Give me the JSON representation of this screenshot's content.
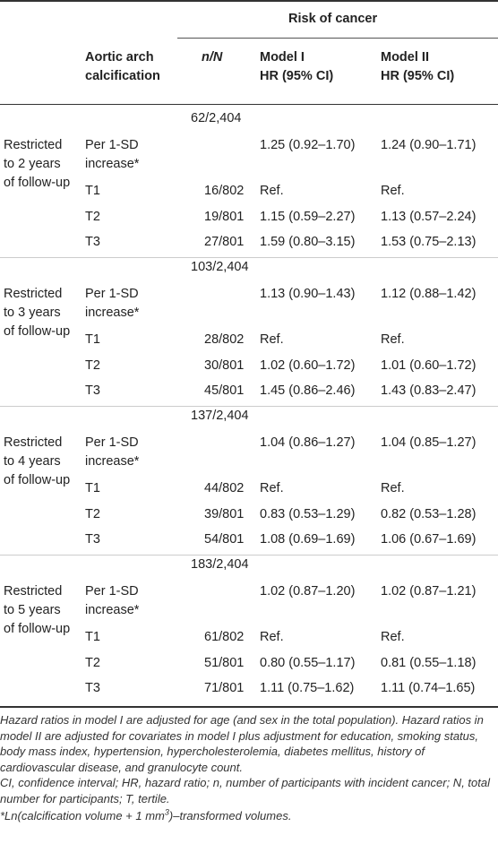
{
  "header": {
    "group_title": "Risk of cancer",
    "col_exposure": [
      "Aortic arch",
      "calcification"
    ],
    "col_n": "n/N",
    "col_model1": [
      "Model I",
      "HR (95% CI)"
    ],
    "col_model2": [
      "Model II",
      "HR (95% CI)"
    ]
  },
  "blocks": [
    {
      "total": "62/2,404",
      "label": [
        "Restricted",
        "to 2 years",
        "of follow-up"
      ],
      "rows": [
        {
          "exposure": [
            "Per 1-SD",
            "increase*"
          ],
          "n": "",
          "m1": "1.25 (0.92–1.70)",
          "m2": "1.24 (0.90–1.71)"
        },
        {
          "exposure": [
            "T1"
          ],
          "n": "16/802",
          "m1": "Ref.",
          "m2": "Ref."
        },
        {
          "exposure": [
            "T2"
          ],
          "n": "19/801",
          "m1": "1.15 (0.59–2.27)",
          "m2": "1.13 (0.57–2.24)"
        },
        {
          "exposure": [
            "T3"
          ],
          "n": "27/801",
          "m1": "1.59 (0.80–3.15)",
          "m2": "1.53 (0.75–2.13)"
        }
      ]
    },
    {
      "total": "103/2,404",
      "label": [
        "Restricted",
        "to 3 years",
        "of follow-up"
      ],
      "rows": [
        {
          "exposure": [
            "Per 1-SD",
            "increase*"
          ],
          "n": "",
          "m1": "1.13 (0.90–1.43)",
          "m2": "1.12 (0.88–1.42)"
        },
        {
          "exposure": [
            "T1"
          ],
          "n": "28/802",
          "m1": "Ref.",
          "m2": "Ref."
        },
        {
          "exposure": [
            "T2"
          ],
          "n": "30/801",
          "m1": "1.02 (0.60–1.72)",
          "m2": "1.01 (0.60–1.72)"
        },
        {
          "exposure": [
            "T3"
          ],
          "n": "45/801",
          "m1": "1.45 (0.86–2.46)",
          "m2": "1.43 (0.83–2.47)"
        }
      ]
    },
    {
      "total": "137/2,404",
      "label": [
        "Restricted",
        "to 4 years",
        "of follow-up"
      ],
      "rows": [
        {
          "exposure": [
            "Per 1-SD",
            "increase*"
          ],
          "n": "",
          "m1": "1.04 (0.86–1.27)",
          "m2": "1.04 (0.85–1.27)"
        },
        {
          "exposure": [
            "T1"
          ],
          "n": "44/802",
          "m1": "Ref.",
          "m2": "Ref."
        },
        {
          "exposure": [
            "T2"
          ],
          "n": "39/801",
          "m1": "0.83 (0.53–1.29)",
          "m2": "0.82 (0.53–1.28)"
        },
        {
          "exposure": [
            "T3"
          ],
          "n": "54/801",
          "m1": "1.08 (0.69–1.69)",
          "m2": "1.06 (0.67–1.69)"
        }
      ]
    },
    {
      "total": "183/2,404",
      "label": [
        "Restricted",
        "to 5 years",
        "of follow-up"
      ],
      "rows": [
        {
          "exposure": [
            "Per 1-SD",
            "increase*"
          ],
          "n": "",
          "m1": "1.02 (0.87–1.20)",
          "m2": "1.02 (0.87–1.21)"
        },
        {
          "exposure": [
            "T1"
          ],
          "n": "61/802",
          "m1": "Ref.",
          "m2": "Ref."
        },
        {
          "exposure": [
            "T2"
          ],
          "n": "51/801",
          "m1": "0.80 (0.55–1.17)",
          "m2": "0.81 (0.55–1.18)"
        },
        {
          "exposure": [
            "T3"
          ],
          "n": "71/801",
          "m1": "1.11 (0.75–1.62)",
          "m2": "1.11 (0.74–1.65)"
        }
      ]
    }
  ],
  "footnotes": {
    "adjustment": "Hazard ratios in model I are adjusted for age (and sex in the total population). Hazard ratios in model II are adjusted for covariates in model I plus adjustment for education, smoking status, body mass index, hypertension, hypercholesterolemia, diabetes mellitus, history of cardiovascular disease, and granulocyte count.",
    "abbreviations": "CI, confidence interval; HR, hazard ratio; n, number of participants with incident cancer; N, total number for participants; T, tertile.",
    "transform_a": "*Ln(calcification volume + 1 mm",
    "transform_sup": "3",
    "transform_b": ")–transformed volumes."
  }
}
